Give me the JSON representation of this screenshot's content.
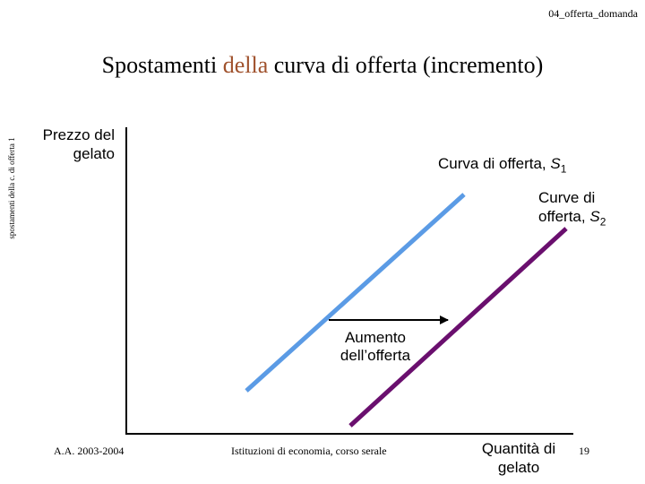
{
  "header": {
    "file_label": "04_offerta_domanda"
  },
  "title": {
    "part1": "Spostamenti ",
    "accent": "della",
    "part2": " curva di offerta (incremento)"
  },
  "side_label": "spostamenti della c. di offerta 1",
  "axes": {
    "y_label": "Prezzo del gelato",
    "x_label": "Quantità di gelato"
  },
  "supply_curves": [
    {
      "label": "Curva di offerta, ",
      "symbol": "S",
      "subscript": "1",
      "color": "#5b9be5"
    },
    {
      "label": "Curve di offerta, ",
      "symbol": "S",
      "subscript": "2",
      "color": "#6a0f6e"
    }
  ],
  "shift": {
    "label": "Aumento dell’offerta"
  },
  "footer": {
    "left": "A.A. 2003-2004",
    "center": "Istituzioni di economia, corso serale",
    "page": "19"
  }
}
